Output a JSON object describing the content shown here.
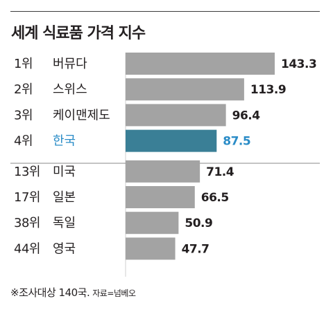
{
  "title": "세계 식료품 가격 지수",
  "chart_data": {
    "type": "bar",
    "orientation": "horizontal",
    "title": "세계 식료품 가격 지수",
    "ranks": [
      "1위",
      "2위",
      "3위",
      "4위",
      "13위",
      "17위",
      "38위",
      "44위"
    ],
    "categories": [
      "버뮤다",
      "스위스",
      "케이맨제도",
      "한국",
      "미국",
      "일본",
      "독일",
      "영국"
    ],
    "values": [
      143.3,
      113.9,
      96.4,
      87.5,
      71.4,
      66.5,
      50.9,
      47.7
    ],
    "value_labels": [
      "143.3",
      "113.9",
      "96.4",
      "87.5",
      "71.4",
      "66.5",
      "50.9",
      "47.7"
    ],
    "highlight": "한국",
    "xlim": [
      0,
      160
    ],
    "grid": false,
    "colors": {
      "bar": "#a3a3a3",
      "highlight_bar": "#3a7f96",
      "highlight_text": "#2a8cc7",
      "text": "#231f20",
      "divider": "#8a8a8a"
    }
  },
  "footnote": {
    "note": "※조사대상 140국.",
    "source": "자료=넘베오"
  }
}
